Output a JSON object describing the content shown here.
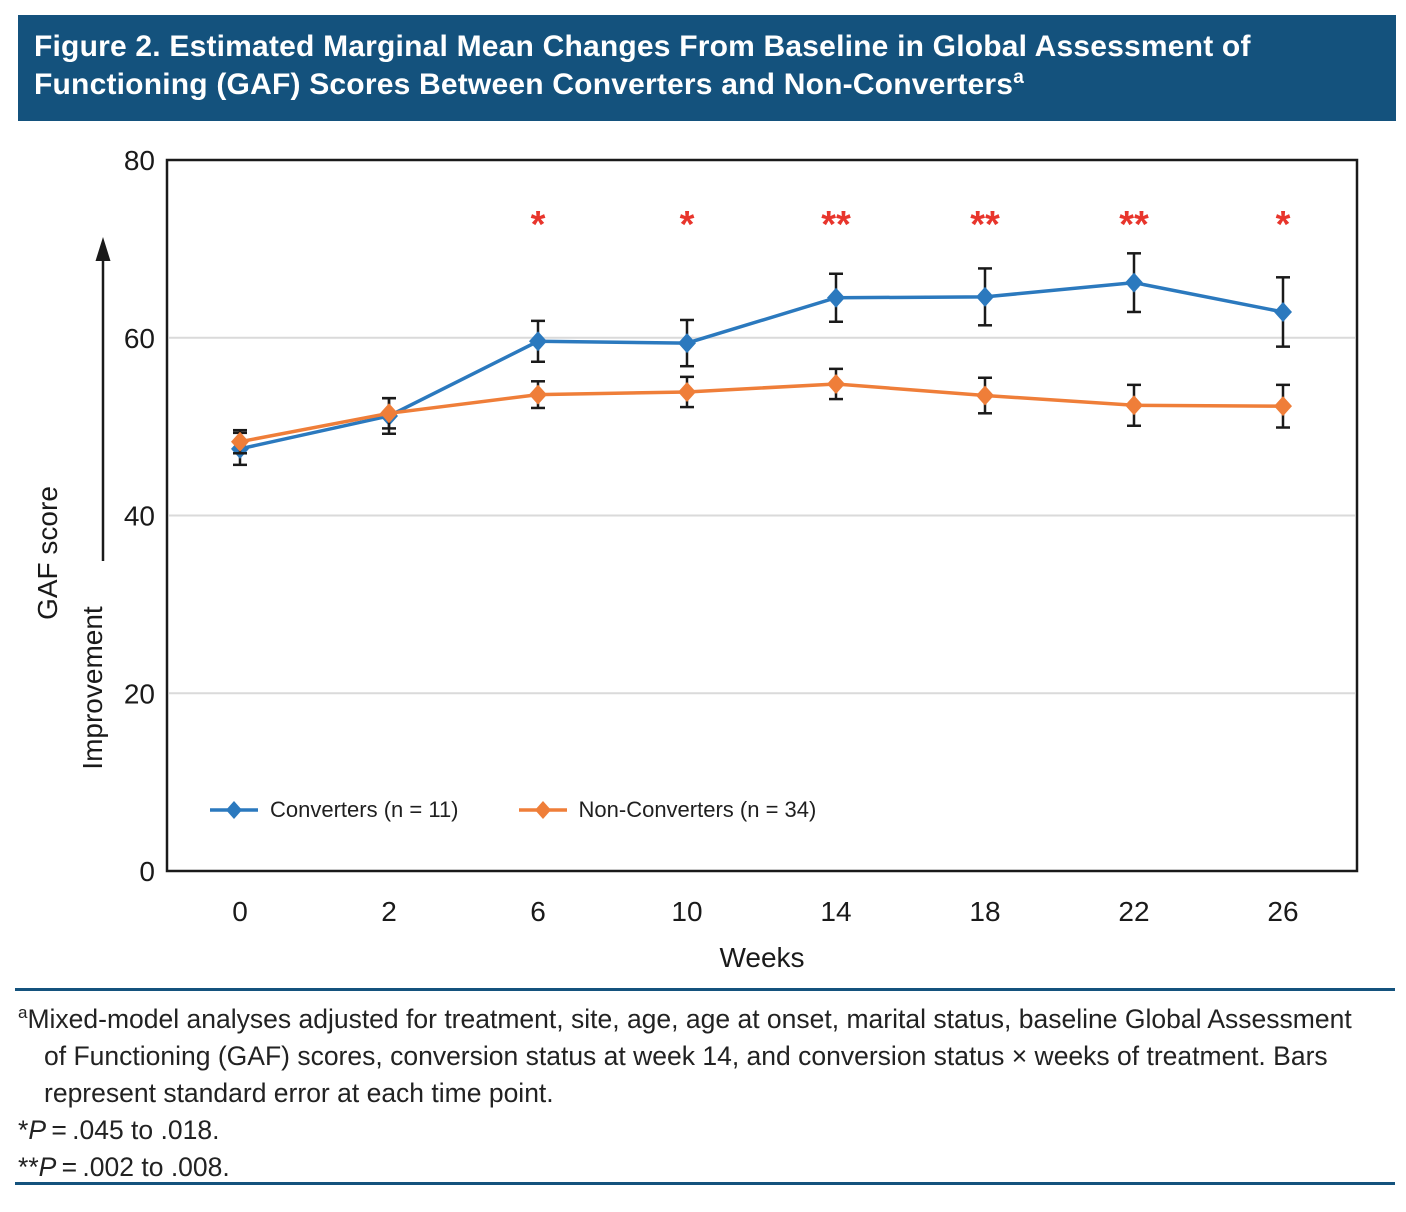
{
  "figure": {
    "title": "Figure 2. Estimated Marginal Mean Changes From Baseline in Global Assessment of Functioning (GAF) Scores Between Converters and Non-Converters",
    "title_superscript": "a",
    "title_bar_color": "#14527D",
    "rule_color": "#14527D"
  },
  "chart_data": {
    "type": "line",
    "x": [
      0,
      2,
      6,
      10,
      14,
      18,
      22,
      26
    ],
    "xlabel": "Weeks",
    "ylabel": "GAF score",
    "ylabel_secondary": "Improvement",
    "ylim": [
      0,
      80
    ],
    "yticks": [
      0,
      20,
      40,
      60,
      80
    ],
    "gridlines_y": [
      20,
      40,
      60
    ],
    "legend_position": "inside-bottom-left",
    "series": [
      {
        "name": "Converters (n = 11)",
        "color": "#2B79BE",
        "marker": "diamond",
        "values": [
          47.5,
          51.2,
          59.6,
          59.4,
          64.5,
          64.6,
          66.2,
          62.9
        ],
        "se": [
          1.8,
          2.0,
          2.3,
          2.6,
          2.7,
          3.2,
          3.3,
          3.9
        ]
      },
      {
        "name": "Non-Converters (n = 34)",
        "color": "#EF7E39",
        "marker": "diamond",
        "values": [
          48.3,
          51.5,
          53.6,
          53.9,
          54.8,
          53.5,
          52.4,
          52.3
        ],
        "se": [
          1.3,
          1.7,
          1.5,
          1.7,
          1.7,
          2.0,
          2.3,
          2.4
        ]
      }
    ],
    "significance": [
      "",
      "",
      "*",
      "*",
      "**",
      "**",
      "**",
      "*"
    ],
    "significance_color": "#E8352C",
    "error_bar_color": "#1A1A1A",
    "grid_color": "#DADADA",
    "border_color": "#1A1A1A"
  },
  "footnotes": {
    "a_sup": "a",
    "a_text": "Mixed-model analyses adjusted for treatment, site, age, age at onset, marital status, baseline Global Assessment of Functioning (GAF) scores, conversion status at week 14, and conversion status × weeks of treatment. Bars represent standard error at each time point.",
    "star_prefix": "*",
    "star_p": "P",
    "star_rest": " = .045 to .018.",
    "dstar_prefix": "**",
    "dstar_p": "P",
    "dstar_rest": " = .002 to .008."
  }
}
